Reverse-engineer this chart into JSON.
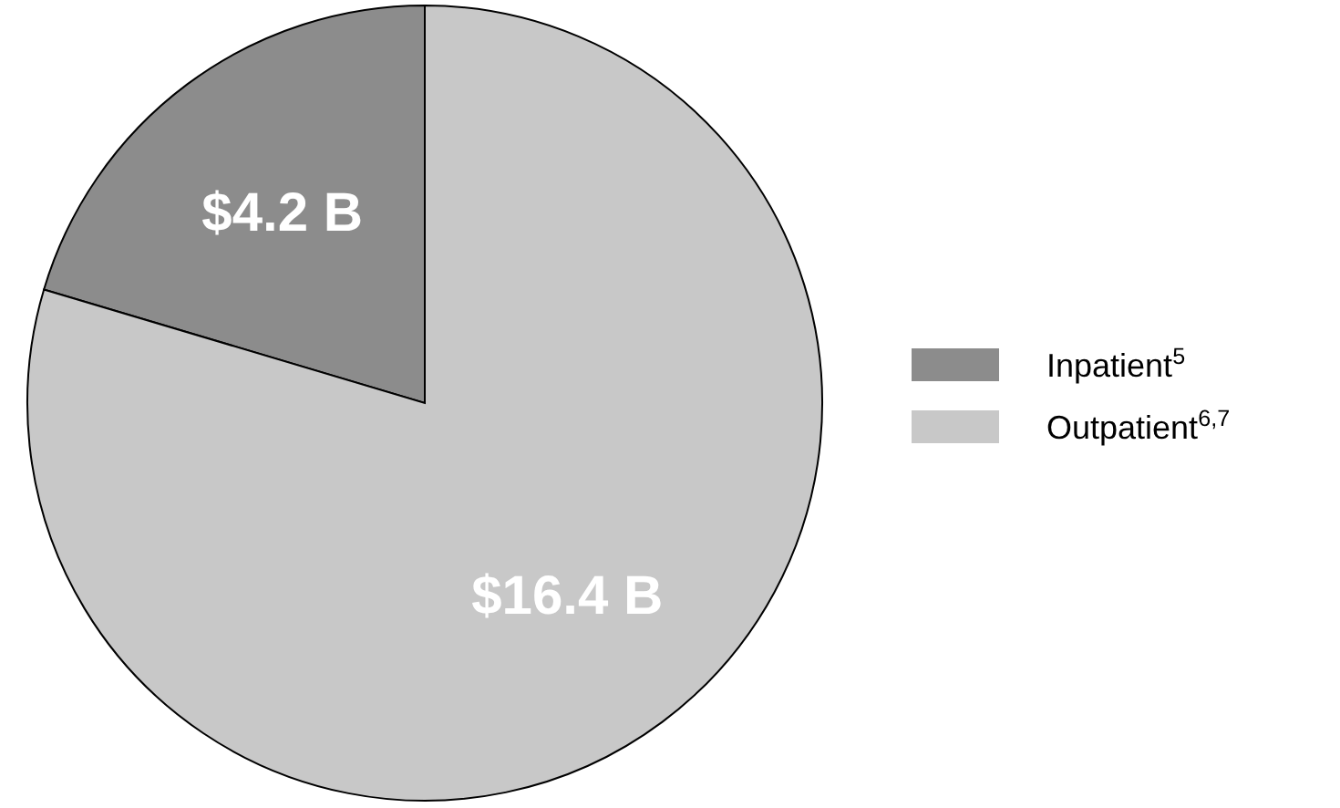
{
  "chart_data": {
    "type": "pie",
    "categories": [
      "Inpatient$^{5}$",
      "Outpatient$^{6,7}$"
    ],
    "values": [
      4.2,
      16.4
    ],
    "colors": [
      "#8c8c8c",
      "#c8c8c8"
    ],
    "value_labels": [
      "$4.2 B",
      "$16.4 B"
    ],
    "legend": "right"
  }
}
